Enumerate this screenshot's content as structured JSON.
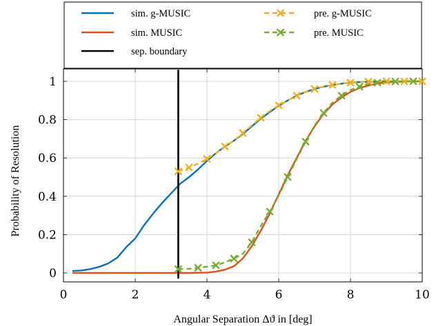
{
  "chart_data": {
    "type": "line",
    "xlabel": "Angular Separation Δϑ in [deg]",
    "ylabel": "Probability of Resolution",
    "xlim": [
      0,
      10
    ],
    "ylim": [
      0,
      1
    ],
    "x_ticks": [
      0,
      2,
      4,
      6,
      8,
      10
    ],
    "y_ticks": [
      0,
      0.2,
      0.4,
      0.6,
      0.8,
      1
    ],
    "x_tick_labels": [
      "0",
      "2",
      "4",
      "6",
      "8",
      "10"
    ],
    "y_tick_labels": [
      "0",
      "0.2",
      "0.4",
      "0.6",
      "0.8",
      "1"
    ],
    "grid": true,
    "legend_position": "top",
    "separation_boundary_x": 3.2,
    "series": [
      {
        "name": "sim. g-MUSIC",
        "color": "#0072bd",
        "style": "solid",
        "x": [
          0.25,
          0.5,
          0.75,
          1.0,
          1.25,
          1.5,
          1.75,
          2.0,
          2.25,
          2.5,
          2.75,
          3.0,
          3.25,
          3.5,
          3.75,
          4.0,
          4.25,
          4.5,
          4.75,
          5.0,
          5.25,
          5.5,
          5.75,
          6.0,
          6.25,
          6.5,
          6.75,
          7.0,
          7.25,
          7.5,
          7.75,
          8.0,
          8.25,
          8.5,
          8.75,
          9.0,
          9.25,
          9.5,
          9.75,
          10.0
        ],
        "y": [
          0.01,
          0.013,
          0.02,
          0.032,
          0.05,
          0.08,
          0.135,
          0.18,
          0.25,
          0.31,
          0.365,
          0.415,
          0.465,
          0.5,
          0.54,
          0.585,
          0.625,
          0.66,
          0.69,
          0.725,
          0.765,
          0.805,
          0.84,
          0.872,
          0.9,
          0.925,
          0.945,
          0.96,
          0.972,
          0.981,
          0.988,
          0.993,
          0.996,
          0.998,
          0.999,
          1.0,
          1.0,
          1.0,
          1.0,
          1.0
        ]
      },
      {
        "name": "sim. MUSIC",
        "color": "#d95319",
        "style": "solid",
        "x": [
          0.25,
          1.0,
          2.0,
          3.0,
          3.5,
          4.0,
          4.25,
          4.5,
          4.75,
          5.0,
          5.25,
          5.5,
          5.75,
          6.0,
          6.25,
          6.5,
          6.75,
          7.0,
          7.25,
          7.5,
          7.75,
          8.0,
          8.25,
          8.5,
          8.75,
          9.0,
          9.25,
          9.5,
          9.75,
          10.0
        ],
        "y": [
          0.0,
          0.0,
          0.0,
          0.0,
          0.0,
          0.002,
          0.007,
          0.017,
          0.035,
          0.075,
          0.14,
          0.22,
          0.31,
          0.41,
          0.51,
          0.6,
          0.69,
          0.765,
          0.83,
          0.88,
          0.915,
          0.945,
          0.965,
          0.978,
          0.988,
          0.994,
          0.997,
          0.999,
          1.0,
          1.0
        ]
      },
      {
        "name": "sep. boundary",
        "color": "#000000",
        "style": "solid",
        "x": [
          3.2,
          3.2
        ],
        "y": [
          -0.03,
          1.06
        ]
      },
      {
        "name": "pre. g-MUSIC",
        "color": "#edb120",
        "style": "dashed",
        "marker": "x",
        "x": [
          3.2,
          3.25,
          3.5,
          3.75,
          4.0,
          4.25,
          4.5,
          4.75,
          5.0,
          5.25,
          5.5,
          5.75,
          6.0,
          6.25,
          6.5,
          6.75,
          7.0,
          7.25,
          7.5,
          7.75,
          8.0,
          8.25,
          8.5,
          8.75,
          9.0,
          9.25,
          9.5,
          9.75,
          10.0
        ],
        "y": [
          0.53,
          0.535,
          0.55,
          0.57,
          0.595,
          0.625,
          0.66,
          0.69,
          0.73,
          0.77,
          0.81,
          0.845,
          0.875,
          0.9,
          0.925,
          0.945,
          0.96,
          0.972,
          0.981,
          0.988,
          0.993,
          0.996,
          0.998,
          0.999,
          1.0,
          1.0,
          1.0,
          1.0,
          1.0
        ]
      },
      {
        "name": "pre. MUSIC",
        "color": "#77ac30",
        "style": "dashed",
        "marker": "x",
        "x": [
          3.2,
          3.5,
          3.75,
          4.0,
          4.25,
          4.5,
          4.75,
          5.0,
          5.25,
          5.5,
          5.75,
          6.0,
          6.25,
          6.5,
          6.75,
          7.0,
          7.25,
          7.5,
          7.75,
          8.0,
          8.25,
          8.5,
          8.75,
          9.0,
          9.25,
          9.5,
          9.75,
          10.0
        ],
        "y": [
          0.02,
          0.022,
          0.027,
          0.032,
          0.04,
          0.055,
          0.075,
          0.1,
          0.16,
          0.245,
          0.32,
          0.405,
          0.5,
          0.595,
          0.685,
          0.77,
          0.835,
          0.89,
          0.925,
          0.955,
          0.972,
          0.985,
          0.993,
          0.997,
          0.999,
          1.0,
          1.0,
          1.0
        ]
      }
    ]
  }
}
